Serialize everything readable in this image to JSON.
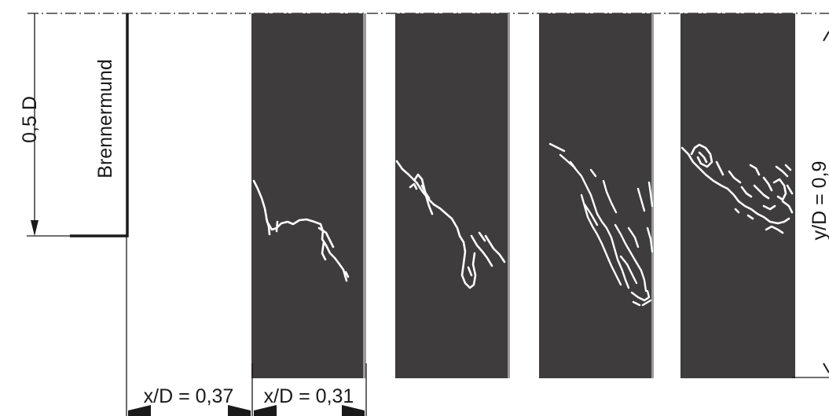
{
  "labels": {
    "radius": "0,5 D",
    "burner_mouth": "Brennermund",
    "axial_position": "y/D = 0,9",
    "offset_x": "x/D = 0,37",
    "window_width": "x/D = 0,31"
  },
  "frames": [
    {
      "label": "frame-1"
    },
    {
      "label": "frame-2"
    },
    {
      "label": "frame-3"
    },
    {
      "label": "frame-4"
    }
  ],
  "colors": {
    "panel": "#3e3c3d",
    "flame": "#ffffff",
    "line": "#1a1a1a"
  }
}
